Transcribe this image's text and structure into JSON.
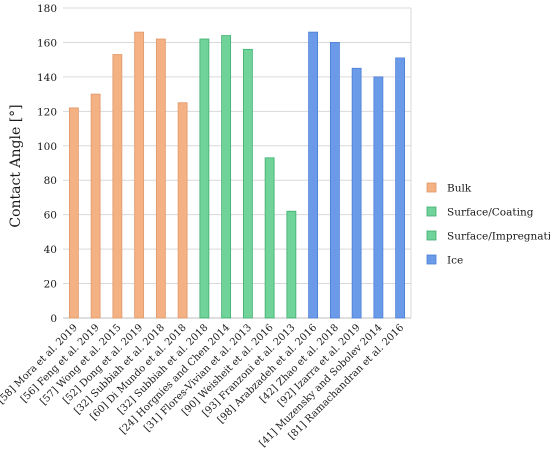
{
  "chart_data": {
    "type": "bar",
    "ylabel": "Contact Angle [°]",
    "xlabel": "",
    "ylim": [
      0,
      180
    ],
    "yticks": [
      0,
      20,
      40,
      60,
      80,
      100,
      120,
      140,
      160,
      180
    ],
    "grid": true,
    "legend_position": "right",
    "categories": [
      "[58] Mora et al. 2019",
      "[56] Feng et al. 2019",
      "[57] Wong et al. 2015",
      "[52] Dong et al. 2019",
      "[32] Subbiah et al. 2018",
      "[60] Di Mundo et al. 2018",
      "[32] Subbiah et al. 2018",
      "[24] Horgnies and Chen 2014",
      "[31] Flores-Vivian et al. 2013",
      "[90] Weisheit et al. 2016",
      "[93] Franzoni et al. 2013",
      "[98] Arabzadeh et al. 2016",
      "[42] Zhao et al. 2018",
      "[92] Izarra et al. 2019",
      "[41] Muzensky and Sobolev 2014",
      "[81] Ramachandran et al. 2016"
    ],
    "values": [
      122,
      130,
      153,
      166,
      162,
      125,
      162,
      164,
      156,
      93,
      62,
      166,
      160,
      145,
      140,
      151
    ],
    "groups": [
      0,
      0,
      0,
      0,
      0,
      0,
      1,
      1,
      1,
      2,
      2,
      3,
      3,
      3,
      3,
      3
    ],
    "series": [
      {
        "name": "Bulk",
        "color": "#f4b183",
        "stroke": "#e0996a"
      },
      {
        "name": "Surface/Coating",
        "color": "#6fd39a",
        "stroke": "#3fae6e"
      },
      {
        "name": "Surface/Impregnation",
        "color": "#6fd39a",
        "stroke": "#3fae6e"
      },
      {
        "name": "Ice",
        "color": "#6b9be8",
        "stroke": "#4a7fd6"
      }
    ]
  }
}
